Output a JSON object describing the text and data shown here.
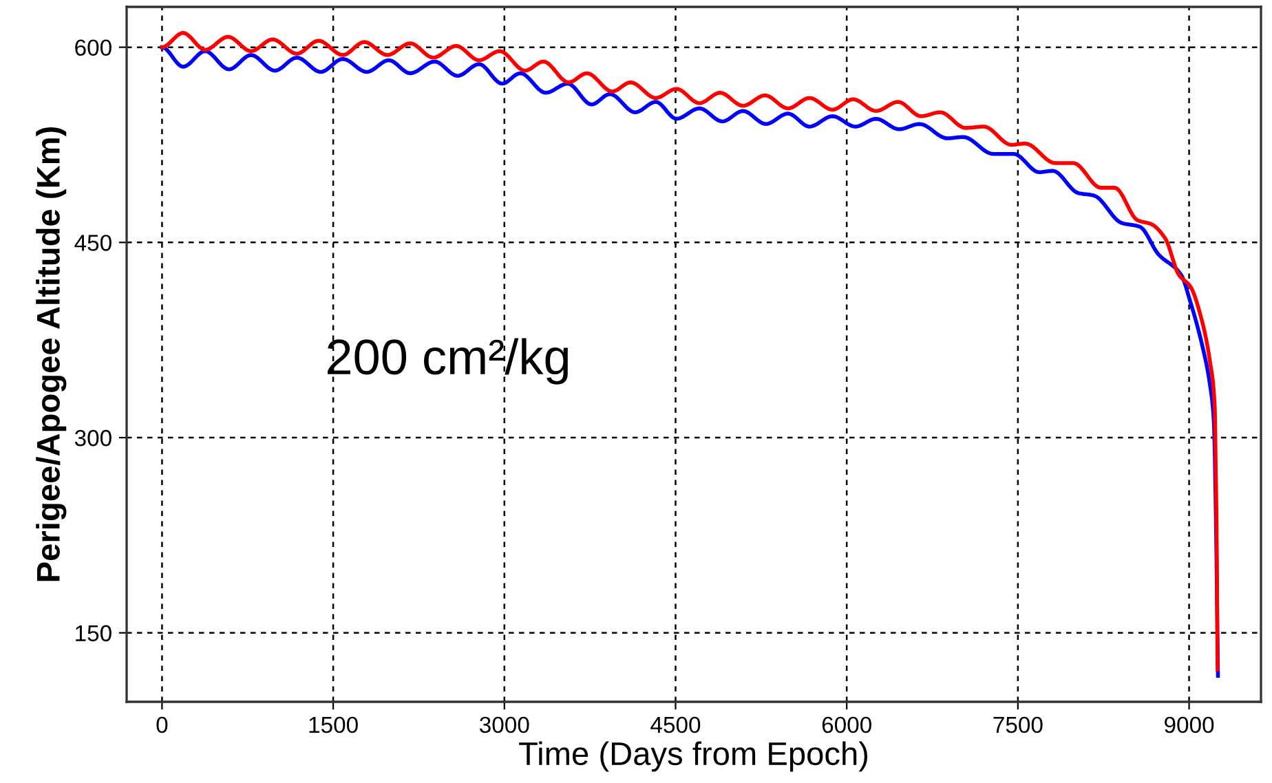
{
  "chart_data": {
    "type": "line",
    "xlabel": "Time (Days from Epoch)",
    "ylabel": "Perigee/Apogee Altitude (Km)",
    "annotations": [
      "200 cm²/kg"
    ],
    "xlim": [
      -310,
      9630
    ],
    "xticks": [
      0,
      1500,
      3000,
      4500,
      6000,
      7500,
      9000
    ],
    "ylim": [
      97,
      631
    ],
    "yticks": [
      150,
      300,
      450,
      600
    ],
    "grid": true,
    "line_style": "solid",
    "marker": "none",
    "series": [
      {
        "color": "#0000ff",
        "x": [
          0,
          185,
          378,
          587,
          780,
          989,
          1182,
          1391,
          1584,
          1794,
          1987,
          2175,
          2389,
          2590,
          2778,
          2980,
          3140,
          3362,
          3555,
          3764,
          3925,
          4146,
          4327,
          4508,
          4709,
          4910,
          5091,
          5292,
          5485,
          5674,
          5875,
          6076,
          6257,
          6458,
          6639,
          6880,
          7021,
          7283,
          7464,
          7685,
          7806,
          8027,
          8167,
          8408,
          8569,
          8730,
          8931,
          9012,
          9112,
          9184,
          9217,
          9233,
          9253
        ],
        "values": [
          600,
          585,
          597,
          583,
          594,
          582,
          592,
          581,
          591,
          581,
          590,
          580,
          589,
          578,
          587,
          572,
          580,
          565,
          572,
          556,
          564,
          550,
          558,
          545,
          553,
          543,
          551,
          541,
          549,
          539,
          547,
          539,
          545,
          537,
          541,
          530,
          531,
          518,
          518,
          504,
          505,
          488,
          486,
          465,
          462,
          441,
          425,
          404,
          372,
          340,
          312,
          249,
          117
        ]
      },
      {
        "color": "#ff0000",
        "x": [
          0,
          185,
          378,
          579,
          780,
          969,
          1182,
          1371,
          1584,
          1773,
          1975,
          2175,
          2377,
          2578,
          2778,
          2959,
          3181,
          3342,
          3563,
          3724,
          3945,
          4106,
          4327,
          4508,
          4709,
          4890,
          5091,
          5284,
          5485,
          5674,
          5875,
          6056,
          6257,
          6450,
          6651,
          6820,
          7041,
          7202,
          7443,
          7564,
          7825,
          7986,
          8227,
          8348,
          8549,
          8670,
          8791,
          8911,
          9012,
          9112,
          9184,
          9225,
          9233,
          9241,
          9249
        ],
        "values": [
          600,
          611,
          598,
          608,
          597,
          606,
          595,
          605,
          594,
          604,
          594,
          603,
          592,
          601,
          590,
          597,
          582,
          589,
          573,
          580,
          566,
          573,
          561,
          568,
          557,
          565,
          555,
          563,
          553,
          561,
          552,
          560,
          551,
          558,
          547,
          550,
          538,
          539,
          525,
          526,
          511,
          511,
          492,
          492,
          467,
          464,
          453,
          425,
          416,
          390,
          358,
          323,
          280,
          231,
          122
        ]
      }
    ]
  }
}
